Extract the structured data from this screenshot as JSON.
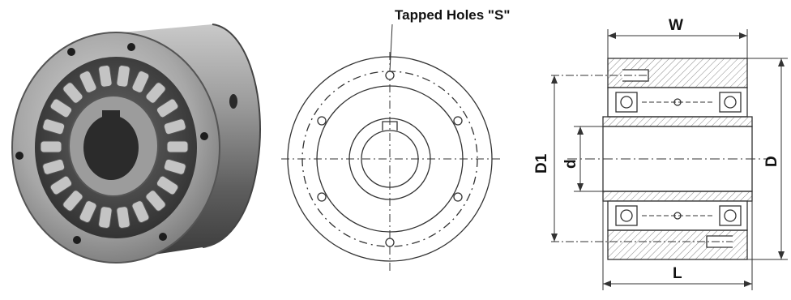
{
  "front_view": {
    "callout": "Tapped Holes \"S\""
  },
  "section_view": {
    "dim_width": "W",
    "dim_length": "L",
    "dim_bore": "d",
    "dim_pitch_circle": "D1",
    "dim_outer": "D"
  }
}
